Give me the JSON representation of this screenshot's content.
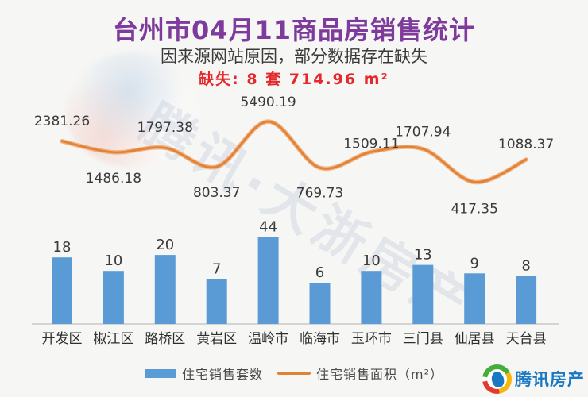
{
  "title": "台州市04月11商品房销售统计",
  "subtitle": "因来源网站原因，部分数据存在缺失",
  "missing_note": "缺失: 8 套 714.96 m²",
  "watermark": {
    "diagonal_text": "腾讯·大浙房产"
  },
  "brand": {
    "name": "腾讯房产"
  },
  "legend": {
    "items": [
      {
        "label": "住宅销售套数"
      },
      {
        "label": "住宅销售面积（m²）"
      }
    ]
  },
  "colors": {
    "title_purple": "#7E3A9C",
    "note_red": "#E4282C",
    "bar_blue": "#5B9BD5",
    "line_orange": "#E08334",
    "brand_blue": "#1B79C3",
    "background": "#F6F6F4"
  },
  "chart_data": {
    "type": "bar",
    "title": "台州市04月11商品房销售统计",
    "categories": [
      "开发区",
      "椒江区",
      "路桥区",
      "黄岩区",
      "温岭市",
      "临海市",
      "玉环市",
      "三门县",
      "仙居县",
      "天台县"
    ],
    "series": [
      {
        "name": "住宅销售套数",
        "type": "bar",
        "color": "#5B9BD5",
        "values": [
          18,
          10,
          20,
          7,
          44,
          6,
          10,
          13,
          9,
          8
        ]
      },
      {
        "name": "住宅销售面积（m²）",
        "type": "line",
        "color": "#E08334",
        "values": [
          2381.26,
          1486.18,
          1797.38,
          803.37,
          5490.19,
          769.73,
          1509.11,
          1707.94,
          417.35,
          1088.37
        ],
        "label_placement": [
          "above",
          "below",
          "above",
          "below",
          "above",
          "below",
          "above",
          "above",
          "below",
          "above"
        ]
      }
    ],
    "xlabel": "",
    "ylabel": "",
    "axis_scale": "log (no visible y-axis, data labels on every point)",
    "grid": false,
    "legend_position": "bottom"
  }
}
